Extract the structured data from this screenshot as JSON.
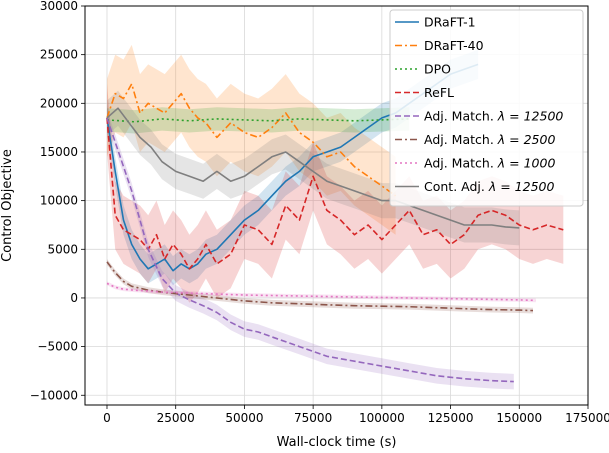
{
  "chart_data": {
    "type": "line",
    "xlabel": "Wall-clock time (s)",
    "ylabel": "Control Objective",
    "xlim": [
      -8000,
      175000
    ],
    "ylim": [
      -11000,
      30000
    ],
    "x_ticks": [
      0,
      25000,
      50000,
      75000,
      100000,
      125000,
      150000,
      175000
    ],
    "x_tick_labels": [
      "0",
      "25000",
      "50000",
      "75000",
      "100000",
      "125000",
      "150000",
      "175000"
    ],
    "y_ticks": [
      -10000,
      -5000,
      0,
      5000,
      10000,
      15000,
      20000,
      25000,
      30000
    ],
    "y_tick_labels": [
      "−10000",
      "−5000",
      "0",
      "5000",
      "10000",
      "15000",
      "20000",
      "25000",
      "30000"
    ],
    "grid": true,
    "legend_position": "top-right",
    "series": [
      {
        "name": "DRaFT-1",
        "label_plain": "DRaFT-1",
        "color": "#1f77b4",
        "dash": "",
        "band": 1500,
        "x": [
          0,
          3000,
          6000,
          9000,
          12000,
          15000,
          18000,
          21000,
          24000,
          27000,
          30000,
          33000,
          36000,
          40000,
          45000,
          50000,
          55000,
          60000,
          65000,
          70000,
          75000,
          80000,
          85000,
          90000,
          95000,
          100000,
          105000,
          110000,
          115000,
          120000,
          125000,
          130000,
          135000
        ],
        "y": [
          18500,
          13000,
          8000,
          5500,
          4000,
          3000,
          3500,
          4000,
          2800,
          3500,
          3000,
          3500,
          4500,
          5000,
          6500,
          8000,
          9000,
          10500,
          12000,
          13000,
          14500,
          15000,
          15500,
          16500,
          17500,
          18500,
          19000,
          20000,
          21000,
          22000,
          23000,
          23500,
          24000
        ]
      },
      {
        "name": "DRaFT-40",
        "label_plain": "DRaFT-40",
        "color": "#ff7f0e",
        "dash": "7,3,2,3",
        "band": 4000,
        "x": [
          0,
          3000,
          6000,
          9000,
          12000,
          15000,
          18000,
          21000,
          24000,
          27000,
          30000,
          33000,
          36000,
          40000,
          45000,
          50000,
          55000,
          60000,
          65000,
          70000,
          75000,
          80000,
          85000,
          90000,
          95000,
          100000,
          105000
        ],
        "y": [
          18500,
          21000,
          20500,
          22000,
          19000,
          20000,
          19500,
          19000,
          20000,
          21000,
          19500,
          18500,
          18000,
          16500,
          18000,
          17000,
          16500,
          17500,
          19000,
          17000,
          16000,
          14500,
          15000,
          13500,
          12500,
          11500,
          10500
        ]
      },
      {
        "name": "DPO",
        "label_plain": "DPO",
        "color": "#2ca02c",
        "dash": "2,3",
        "band": 1200,
        "x": [
          0,
          10000,
          20000,
          30000,
          40000,
          50000,
          60000,
          70000,
          80000,
          90000,
          100000,
          110000
        ],
        "y": [
          18300,
          18100,
          18400,
          18200,
          18400,
          18300,
          18200,
          18400,
          18300,
          18200,
          18300,
          18400
        ]
      },
      {
        "name": "ReFL",
        "label_plain": "ReFL",
        "color": "#d62728",
        "dash": "6,3",
        "band": 3500,
        "x": [
          0,
          3000,
          6000,
          9000,
          12000,
          15000,
          18000,
          21000,
          24000,
          27000,
          30000,
          33000,
          36000,
          40000,
          45000,
          50000,
          55000,
          60000,
          65000,
          70000,
          75000,
          80000,
          85000,
          90000,
          95000,
          100000,
          105000,
          110000,
          115000,
          120000,
          125000,
          130000,
          135000,
          140000,
          145000,
          150000,
          155000,
          160000,
          166000
        ],
        "y": [
          18500,
          8500,
          7000,
          6500,
          6000,
          5000,
          6500,
          4000,
          5500,
          4500,
          3000,
          4000,
          5500,
          3500,
          4500,
          7500,
          7000,
          5500,
          9500,
          8000,
          12500,
          9000,
          8000,
          6500,
          7500,
          6000,
          7500,
          9000,
          6500,
          7000,
          5500,
          6500,
          8500,
          9000,
          8500,
          7500,
          7000,
          7500,
          7000
        ]
      },
      {
        "name": "Adj. Match. λ = 12500",
        "label_plain": "Adj. Match. ",
        "label_math": "λ = 12500",
        "color": "#9467bd",
        "dash": "6,3",
        "band": 800,
        "x": [
          0,
          3000,
          6000,
          9000,
          12000,
          15000,
          20000,
          25000,
          30000,
          35000,
          40000,
          45000,
          50000,
          55000,
          60000,
          70000,
          80000,
          90000,
          100000,
          110000,
          120000,
          130000,
          140000,
          148000
        ],
        "y": [
          18500,
          16000,
          13500,
          11000,
          8000,
          5000,
          2000,
          500,
          -200,
          -800,
          -1500,
          -2500,
          -3200,
          -3500,
          -4000,
          -5000,
          -6000,
          -6500,
          -7000,
          -7500,
          -8000,
          -8300,
          -8500,
          -8600
        ]
      },
      {
        "name": "Adj. Match. λ = 2500",
        "label_plain": "Adj. Match. ",
        "label_math": "λ = 2500",
        "color": "#8c564b",
        "dash": "7,3,2,3",
        "band": 300,
        "x": [
          0,
          3000,
          6000,
          9000,
          12000,
          15000,
          20000,
          30000,
          40000,
          50000,
          60000,
          70000,
          80000,
          90000,
          100000,
          110000,
          120000,
          130000,
          140000,
          150000,
          155000
        ],
        "y": [
          3700,
          2600,
          1700,
          1200,
          1000,
          800,
          600,
          300,
          0,
          -300,
          -500,
          -600,
          -700,
          -800,
          -850,
          -900,
          -1000,
          -1100,
          -1200,
          -1250,
          -1300
        ]
      },
      {
        "name": "Adj. Match. λ = 1000",
        "label_plain": "Adj. Match. ",
        "label_math": "λ = 1000",
        "color": "#e377c2",
        "dash": "2,3",
        "band": 200,
        "x": [
          0,
          3000,
          6000,
          10000,
          15000,
          20000,
          30000,
          40000,
          50000,
          60000,
          70000,
          80000,
          90000,
          100000,
          110000,
          120000,
          130000,
          140000,
          150000,
          156000
        ],
        "y": [
          1500,
          1100,
          900,
          800,
          700,
          600,
          500,
          400,
          300,
          250,
          200,
          150,
          100,
          50,
          0,
          -50,
          -100,
          -150,
          -200,
          -250
        ]
      },
      {
        "name": "Cont. Adj. λ = 12500",
        "label_plain": "Cont. Adj. ",
        "label_math": "λ = 12500",
        "color": "#7f7f7f",
        "dash": "",
        "band": 1800,
        "x": [
          0,
          4000,
          8000,
          12000,
          16000,
          20000,
          25000,
          30000,
          35000,
          40000,
          45000,
          50000,
          55000,
          60000,
          65000,
          70000,
          75000,
          80000,
          85000,
          90000,
          95000,
          100000,
          105000,
          110000,
          115000,
          120000,
          125000,
          130000,
          135000,
          140000,
          145000,
          150000
        ],
        "y": [
          18500,
          19500,
          18000,
          16500,
          15500,
          14000,
          13000,
          12500,
          12000,
          13000,
          12000,
          12500,
          13500,
          14500,
          15000,
          14000,
          13000,
          12000,
          11500,
          11000,
          10500,
          10000,
          10000,
          9500,
          9000,
          8500,
          8000,
          7500,
          7500,
          7500,
          7300,
          7200
        ]
      }
    ]
  }
}
